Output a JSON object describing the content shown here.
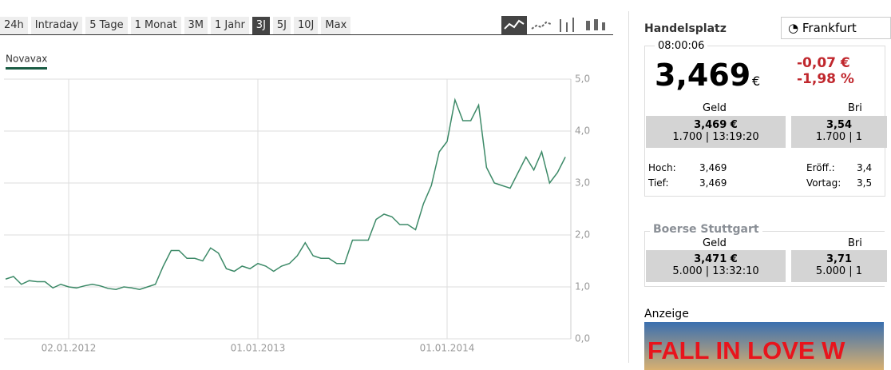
{
  "tabs": [
    "24h",
    "Intraday",
    "5 Tage",
    "1 Monat",
    "3M",
    "1 Jahr",
    "3J",
    "5J",
    "10J",
    "Max"
  ],
  "active_tab": 6,
  "chart_data": {
    "type": "line",
    "legend": "Novavax",
    "series": [
      {
        "name": "Novavax",
        "color": "#3d8a68",
        "values": [
          1.15,
          1.2,
          1.05,
          1.12,
          1.1,
          1.1,
          0.98,
          1.05,
          1.0,
          0.98,
          1.02,
          1.05,
          1.02,
          0.97,
          0.95,
          1.0,
          0.98,
          0.95,
          1.0,
          1.05,
          1.4,
          1.7,
          1.7,
          1.55,
          1.55,
          1.5,
          1.75,
          1.65,
          1.35,
          1.3,
          1.4,
          1.35,
          1.45,
          1.4,
          1.3,
          1.4,
          1.45,
          1.6,
          1.85,
          1.6,
          1.55,
          1.55,
          1.45,
          1.45,
          1.9,
          1.9,
          1.9,
          2.3,
          2.4,
          2.35,
          2.2,
          2.2,
          2.1,
          2.6,
          2.95,
          3.6,
          3.8,
          4.6,
          4.2,
          4.2,
          4.5,
          3.3,
          3.0,
          2.95,
          2.9,
          3.2,
          3.5,
          3.25,
          3.6,
          3.0,
          3.2,
          3.5
        ]
      }
    ],
    "categories": [
      null,
      null,
      null,
      null,
      null,
      null,
      null,
      null,
      "02.01.2012",
      null,
      null,
      null,
      null,
      null,
      null,
      null,
      null,
      null,
      null,
      null,
      null,
      null,
      null,
      null,
      null,
      null,
      null,
      null,
      null,
      null,
      null,
      null,
      "01.01.2013",
      null,
      null,
      null,
      null,
      null,
      null,
      null,
      null,
      null,
      null,
      null,
      null,
      null,
      null,
      null,
      null,
      null,
      null,
      null,
      null,
      null,
      null,
      null,
      "01.01.2014",
      null,
      null,
      null,
      null,
      null,
      null,
      null,
      null,
      null,
      null,
      null,
      null,
      null,
      null,
      null
    ],
    "ylim": [
      0,
      5
    ],
    "yticks": [
      {
        "value": 0,
        "label": "0,0"
      },
      {
        "value": 1,
        "label": "1,0"
      },
      {
        "value": 2,
        "label": "2,0"
      },
      {
        "value": 3,
        "label": "3,0"
      },
      {
        "value": 4,
        "label": "4,0"
      },
      {
        "value": 5,
        "label": "5,0"
      }
    ],
    "grid": true
  },
  "quote": {
    "title": "Handelsplatz",
    "exchange": "Frankfurt",
    "time": "08:00:06",
    "price": "3,469",
    "currency": "€",
    "change_abs": "-0,07 €",
    "change_pct": "-1,98 %",
    "bid_label": "Geld",
    "ask_label": "Bri",
    "bid": "3,469 €",
    "bid_info": "1.700 | 13:19:20",
    "ask": "3,54",
    "ask_info": "1.700 | 1",
    "stats": [
      [
        "Hoch:",
        "3,469",
        "Eröff.:",
        "3,4"
      ],
      [
        "Tief:",
        "3,469",
        "Vortag:",
        "3,5"
      ]
    ]
  },
  "stuttgart": {
    "logo": "Boerse Stuttgart",
    "bid_label": "Geld",
    "ask_label": "Bri",
    "bid": "3,471 €",
    "bid_info": "5.000 | 13:32:10",
    "ask": "3,71",
    "ask_info": "5.000 | 1"
  },
  "ad": {
    "label": "Anzeige",
    "text": "FALL IN LOVE W"
  }
}
